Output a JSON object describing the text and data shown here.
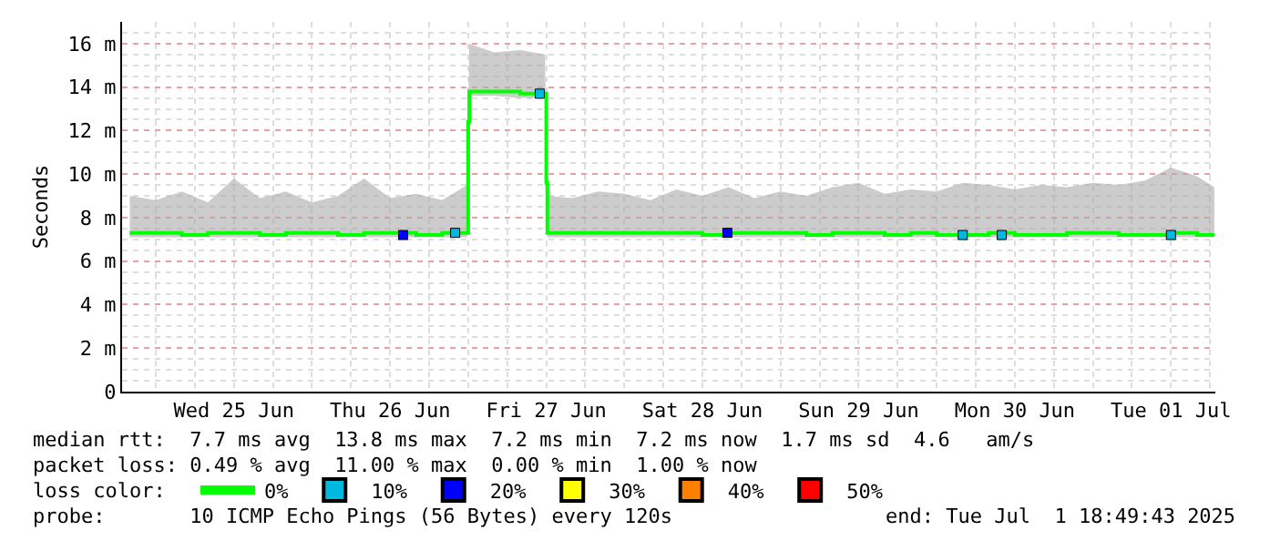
{
  "chart_data": {
    "type": "line",
    "ylabel": "Seconds",
    "xlim": [
      "2025-06-24T18:49",
      "2025-07-01T18:49"
    ],
    "xticks": [
      {
        "value": "2025-06-25T12:00",
        "label": "Wed 25 Jun"
      },
      {
        "value": "2025-06-26T12:00",
        "label": "Thu 26 Jun"
      },
      {
        "value": "2025-06-27T12:00",
        "label": "Fri 27 Jun"
      },
      {
        "value": "2025-06-28T12:00",
        "label": "Sat 28 Jun"
      },
      {
        "value": "2025-06-29T12:00",
        "label": "Sun 29 Jun"
      },
      {
        "value": "2025-06-30T12:00",
        "label": "Mon 30 Jun"
      },
      {
        "value": "2025-07-01T12:00",
        "label": "Tue 01 Jul"
      }
    ],
    "ylim": [
      0,
      17
    ],
    "yticks": [
      0,
      {
        "value": 2,
        "label": "2 m"
      },
      {
        "value": 4,
        "label": "4 m"
      },
      {
        "value": 6,
        "label": "6 m"
      },
      {
        "value": 8,
        "label": "8 m"
      },
      {
        "value": 10,
        "label": "10 m"
      },
      {
        "value": 12,
        "label": "12 m"
      },
      {
        "value": 14,
        "label": "14 m"
      },
      {
        "value": 16,
        "label": "16 m"
      }
    ],
    "grid": true,
    "legend": "bottom",
    "marker": "none",
    "line_style": "solid",
    "x": [
      "2025-06-24T20:00",
      "2025-06-25T00:00",
      "2025-06-25T04:00",
      "2025-06-25T08:00",
      "2025-06-25T12:00",
      "2025-06-25T16:00",
      "2025-06-25T20:00",
      "2025-06-26T00:00",
      "2025-06-26T04:00",
      "2025-06-26T08:00",
      "2025-06-26T12:00",
      "2025-06-26T16:00",
      "2025-06-26T20:00",
      "2025-06-26T23:50",
      "2025-06-27T00:00",
      "2025-06-27T00:10",
      "2025-06-27T04:00",
      "2025-06-27T08:00",
      "2025-06-27T11:50",
      "2025-06-27T12:00",
      "2025-06-27T12:10",
      "2025-06-27T16:00",
      "2025-06-27T20:00",
      "2025-06-28T00:00",
      "2025-06-28T04:00",
      "2025-06-28T08:00",
      "2025-06-28T12:00",
      "2025-06-28T16:00",
      "2025-06-28T20:00",
      "2025-06-29T00:00",
      "2025-06-29T04:00",
      "2025-06-29T08:00",
      "2025-06-29T12:00",
      "2025-06-29T16:00",
      "2025-06-29T20:00",
      "2025-06-30T00:00",
      "2025-06-30T04:00",
      "2025-06-30T08:00",
      "2025-06-30T12:00",
      "2025-06-30T16:00",
      "2025-06-30T20:00",
      "2025-07-01T00:00",
      "2025-07-01T04:00",
      "2025-07-01T08:00",
      "2025-07-01T12:00",
      "2025-07-01T16:00",
      "2025-07-01T18:40"
    ],
    "series": [
      {
        "name": "0%",
        "color": "#00ff00",
        "values": [
          7.3,
          7.3,
          7.2,
          7.3,
          7.3,
          7.2,
          7.3,
          7.3,
          7.2,
          7.3,
          7.3,
          7.2,
          7.3,
          7.3,
          12.4,
          13.8,
          13.8,
          13.7,
          13.7,
          9.6,
          7.3,
          7.3,
          7.3,
          7.3,
          7.3,
          7.3,
          7.2,
          7.3,
          7.3,
          7.3,
          7.2,
          7.3,
          7.3,
          7.2,
          7.3,
          7.2,
          7.2,
          7.3,
          7.2,
          7.2,
          7.3,
          7.3,
          7.2,
          7.2,
          7.3,
          7.2,
          7.2
        ],
        "lower": [
          7.1,
          7.1,
          7.1,
          7.1,
          7.1,
          7.1,
          7.1,
          7.1,
          7.1,
          7.1,
          7.1,
          7.1,
          7.1,
          7.1,
          12.2,
          13.6,
          13.6,
          13.5,
          13.5,
          9.4,
          7.1,
          7.1,
          7.1,
          7.1,
          7.1,
          7.1,
          7.1,
          7.1,
          7.1,
          7.1,
          7.1,
          7.1,
          7.1,
          7.1,
          7.1,
          7.1,
          7.1,
          7.1,
          7.1,
          7.1,
          7.1,
          7.1,
          7.1,
          7.1,
          7.1,
          7.1,
          7.1
        ],
        "upper": [
          9.0,
          8.8,
          9.2,
          8.7,
          9.8,
          8.9,
          9.2,
          8.7,
          9.0,
          9.8,
          8.9,
          9.1,
          8.8,
          9.5,
          12.4,
          16.0,
          15.6,
          15.7,
          15.5,
          9.6,
          9.0,
          8.9,
          9.2,
          9.1,
          8.8,
          9.3,
          9.0,
          9.4,
          8.9,
          9.2,
          9.0,
          9.4,
          9.6,
          9.1,
          9.3,
          9.2,
          9.6,
          9.5,
          9.3,
          9.5,
          9.4,
          9.6,
          9.5,
          9.7,
          10.3,
          9.9,
          9.4
        ]
      },
      {
        "name": "10%",
        "color": "#00b8e0",
        "type": "scatter",
        "marker": "square",
        "x": [
          "2025-06-26T22:00",
          "2025-06-27T11:00",
          "2025-06-30T04:00",
          "2025-06-30T10:00",
          "2025-07-01T12:00"
        ],
        "values": [
          7.3,
          13.7,
          7.2,
          7.2,
          7.2
        ]
      },
      {
        "name": "20%",
        "color": "#0000ff",
        "type": "scatter",
        "marker": "square",
        "x": [
          "2025-06-26T14:00",
          "2025-06-28T15:50"
        ],
        "values": [
          7.2,
          7.3
        ]
      },
      {
        "name": "30%",
        "color": "#ffff00",
        "type": "scatter",
        "marker": "square",
        "values": [
          null,
          null,
          null,
          null,
          null,
          null,
          null,
          null,
          null,
          null,
          null,
          null,
          null,
          null,
          null,
          null,
          null,
          null,
          null,
          null,
          null,
          null,
          null,
          null,
          null,
          null,
          null,
          null,
          null,
          null,
          null,
          null,
          null,
          null,
          null,
          null,
          null,
          null,
          null,
          null,
          null,
          null,
          null,
          null,
          null,
          null,
          null
        ]
      },
      {
        "name": "40%",
        "color": "#ff8000",
        "type": "scatter",
        "marker": "square",
        "values": [
          null,
          null,
          null,
          null,
          null,
          null,
          null,
          null,
          null,
          null,
          null,
          null,
          null,
          null,
          null,
          null,
          null,
          null,
          null,
          null,
          null,
          null,
          null,
          null,
          null,
          null,
          null,
          null,
          null,
          null,
          null,
          null,
          null,
          null,
          null,
          null,
          null,
          null,
          null,
          null,
          null,
          null,
          null,
          null,
          null,
          null,
          null
        ]
      },
      {
        "name": "50%",
        "color": "#ff0000",
        "type": "scatter",
        "marker": "square",
        "values": [
          null,
          null,
          null,
          null,
          null,
          null,
          null,
          null,
          null,
          null,
          null,
          null,
          null,
          null,
          null,
          null,
          null,
          null,
          null,
          null,
          null,
          null,
          null,
          null,
          null,
          null,
          null,
          null,
          null,
          null,
          null,
          null,
          null,
          null,
          null,
          null,
          null,
          null,
          null,
          null,
          null,
          null,
          null,
          null,
          null,
          null,
          null
        ]
      }
    ],
    "annotations": [
      "median rtt:  7.7 ms avg  13.8 ms max  7.2 ms min  7.2 ms now  1.7 ms sd  4.6   am/s",
      "packet loss: 0.49 % avg  11.00 % max  0.00 % min  1.00 % now",
      "loss color:",
      "probe:       10 ICMP Echo Pings (56 Bytes) every 120s",
      "end: Tue Jul  1 18:49:43 2025"
    ]
  }
}
